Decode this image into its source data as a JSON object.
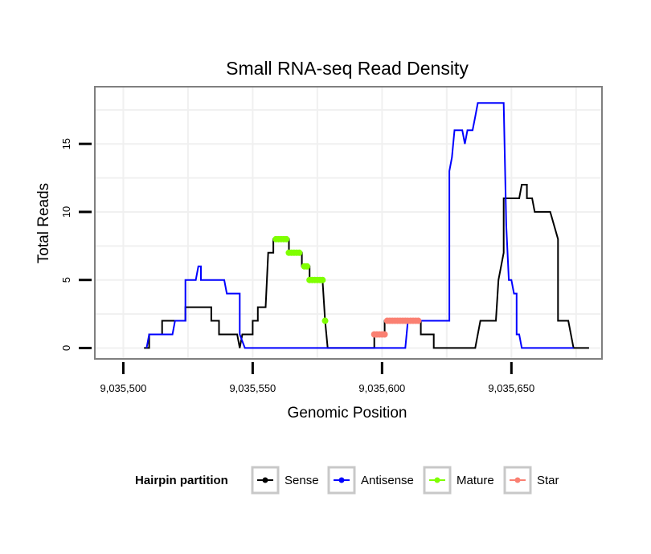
{
  "chart_data": {
    "type": "line",
    "title": "Small RNA-seq Read Density",
    "xlabel": "Genomic Position",
    "ylabel": "Total Reads",
    "xlim": [
      9035489,
      9035685
    ],
    "ylim": [
      -0.8,
      19.2
    ],
    "xticks": [
      9035500,
      9035550,
      9035600,
      9035650
    ],
    "xtick_labels": [
      "9,035,500",
      "9,035,550",
      "9,035,600",
      "9,035,650"
    ],
    "yticks": [
      0,
      5,
      10,
      15
    ],
    "ytick_labels": [
      "0",
      "5",
      "10",
      "15"
    ],
    "grid": true,
    "legend": {
      "title": "Hairpin partition",
      "position": "bottom",
      "entries": [
        {
          "name": "Sense",
          "color": "#000000"
        },
        {
          "name": "Antisense",
          "color": "#0000ff"
        },
        {
          "name": "Mature",
          "color": "#7fff00"
        },
        {
          "name": "Star",
          "color": "#fa8072"
        }
      ]
    },
    "series": [
      {
        "name": "Sense",
        "color": "#000000",
        "style": "line",
        "points": [
          [
            9035508,
            0
          ],
          [
            9035510,
            0
          ],
          [
            9035510,
            1
          ],
          [
            9035515,
            1
          ],
          [
            9035515,
            2
          ],
          [
            9035524,
            2
          ],
          [
            9035524,
            3
          ],
          [
            9035534,
            3
          ],
          [
            9035534,
            2
          ],
          [
            9035537,
            2
          ],
          [
            9035537,
            1
          ],
          [
            9035544,
            1
          ],
          [
            9035545,
            0
          ],
          [
            9035546,
            1
          ],
          [
            9035550,
            1
          ],
          [
            9035550,
            2
          ],
          [
            9035552,
            2
          ],
          [
            9035552,
            3
          ],
          [
            9035555,
            3
          ],
          [
            9035556,
            7
          ],
          [
            9035558,
            7
          ],
          [
            9035558,
            8
          ],
          [
            9035564,
            8
          ],
          [
            9035564,
            7
          ],
          [
            9035569,
            7
          ],
          [
            9035569,
            6
          ],
          [
            9035572,
            6
          ],
          [
            9035572,
            5
          ],
          [
            9035577,
            5
          ],
          [
            9035578,
            2
          ],
          [
            9035579,
            0
          ],
          [
            9035597,
            0
          ],
          [
            9035597,
            1
          ],
          [
            9035601,
            1
          ],
          [
            9035601,
            2
          ],
          [
            9035615,
            2
          ],
          [
            9035615,
            1
          ],
          [
            9035620,
            1
          ],
          [
            9035620,
            0
          ],
          [
            9035636,
            0
          ],
          [
            9035638,
            2
          ],
          [
            9035644,
            2
          ],
          [
            9035645,
            5
          ],
          [
            9035647,
            7
          ],
          [
            9035647,
            11
          ],
          [
            9035653,
            11
          ],
          [
            9035654,
            12
          ],
          [
            9035656,
            12
          ],
          [
            9035656,
            11
          ],
          [
            9035658,
            11
          ],
          [
            9035659,
            10
          ],
          [
            9035665,
            10
          ],
          [
            9035668,
            8
          ],
          [
            9035668,
            2
          ],
          [
            9035672,
            2
          ],
          [
            9035674,
            0
          ],
          [
            9035680,
            0
          ]
        ]
      },
      {
        "name": "Antisense",
        "color": "#0000ff",
        "style": "line",
        "points": [
          [
            9035509,
            0
          ],
          [
            9035510,
            1
          ],
          [
            9035519,
            1
          ],
          [
            9035520,
            2
          ],
          [
            9035524,
            2
          ],
          [
            9035524,
            5
          ],
          [
            9035528,
            5
          ],
          [
            9035529,
            6
          ],
          [
            9035530,
            6
          ],
          [
            9035530,
            5
          ],
          [
            9035539,
            5
          ],
          [
            9035540,
            4
          ],
          [
            9035545,
            4
          ],
          [
            9035545,
            1
          ],
          [
            9035547,
            0
          ],
          [
            9035609,
            0
          ],
          [
            9035610,
            2
          ],
          [
            9035626,
            2
          ],
          [
            9035626,
            13
          ],
          [
            9035627,
            14
          ],
          [
            9035628,
            16
          ],
          [
            9035631,
            16
          ],
          [
            9035632,
            15
          ],
          [
            9035633,
            16
          ],
          [
            9035635,
            16
          ],
          [
            9035636,
            17
          ],
          [
            9035637,
            18
          ],
          [
            9035647,
            18
          ],
          [
            9035648,
            9
          ],
          [
            9035649,
            5
          ],
          [
            9035650,
            5
          ],
          [
            9035651,
            4
          ],
          [
            9035652,
            4
          ],
          [
            9035652,
            1
          ],
          [
            9035653,
            1
          ],
          [
            9035654,
            0
          ],
          [
            9035674,
            0
          ]
        ]
      },
      {
        "name": "Mature",
        "color": "#7fff00",
        "style": "points",
        "points": [
          [
            9035559,
            8
          ],
          [
            9035560,
            8
          ],
          [
            9035561,
            8
          ],
          [
            9035562,
            8
          ],
          [
            9035563,
            8
          ],
          [
            9035564,
            7
          ],
          [
            9035565,
            7
          ],
          [
            9035566,
            7
          ],
          [
            9035567,
            7
          ],
          [
            9035568,
            7
          ],
          [
            9035570,
            6
          ],
          [
            9035571,
            6
          ],
          [
            9035572,
            5
          ],
          [
            9035573,
            5
          ],
          [
            9035574,
            5
          ],
          [
            9035575,
            5
          ],
          [
            9035576,
            5
          ],
          [
            9035577,
            5
          ],
          [
            9035578,
            2
          ]
        ]
      },
      {
        "name": "Star",
        "color": "#fa8072",
        "style": "points",
        "points": [
          [
            9035597,
            1
          ],
          [
            9035598,
            1
          ],
          [
            9035599,
            1
          ],
          [
            9035600,
            1
          ],
          [
            9035601,
            1
          ],
          [
            9035602,
            2
          ],
          [
            9035603,
            2
          ],
          [
            9035604,
            2
          ],
          [
            9035605,
            2
          ],
          [
            9035606,
            2
          ],
          [
            9035607,
            2
          ],
          [
            9035608,
            2
          ],
          [
            9035609,
            2
          ],
          [
            9035610,
            2
          ],
          [
            9035611,
            2
          ],
          [
            9035612,
            2
          ],
          [
            9035613,
            2
          ],
          [
            9035614,
            2
          ]
        ]
      }
    ]
  }
}
